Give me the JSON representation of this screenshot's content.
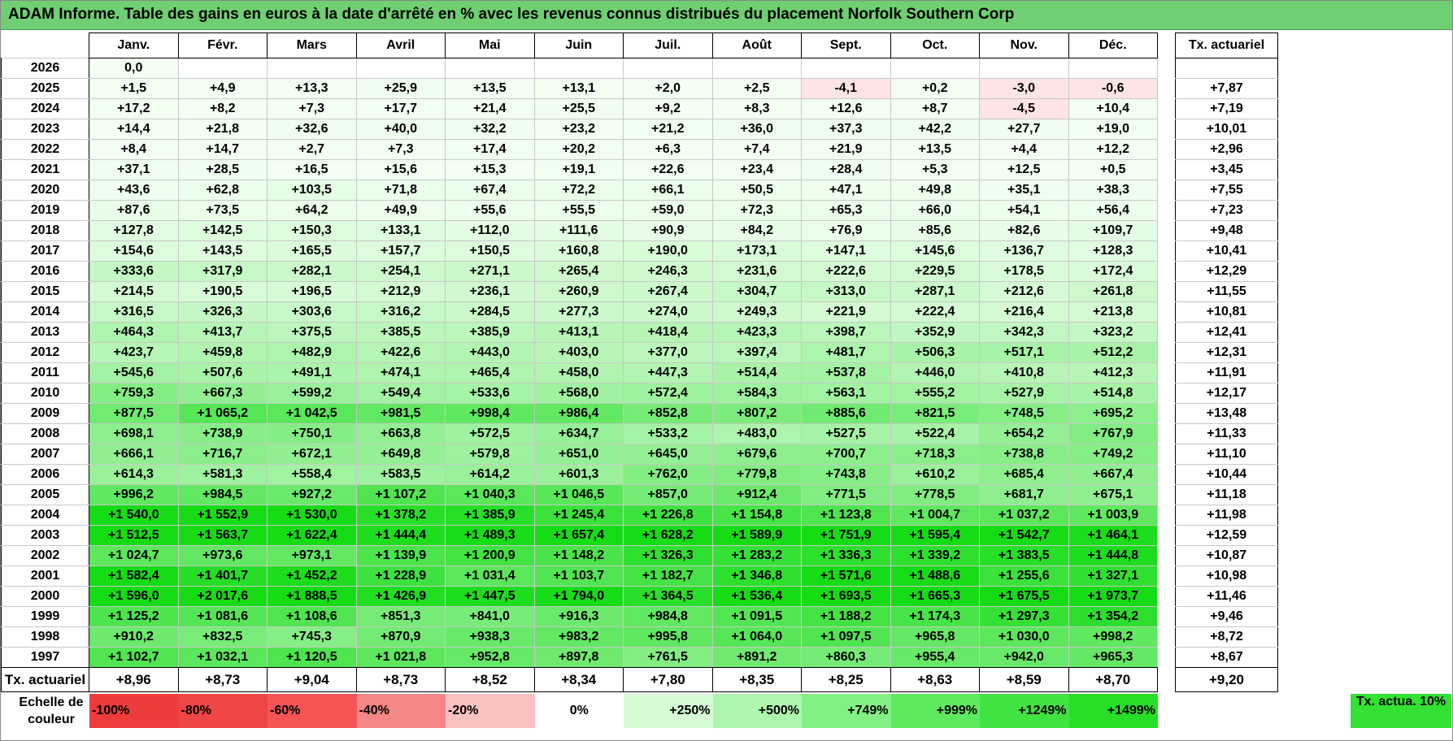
{
  "title": "ADAM Informe. Table des gains en euros à la date d'arrêté en % avec les revenus connus distribués du placement Norfolk Southern Corp",
  "months": [
    "Janv.",
    "Févr.",
    "Mars",
    "Avril",
    "Mai",
    "Juin",
    "Juil.",
    "Août",
    "Sept.",
    "Oct.",
    "Nov.",
    "Déc."
  ],
  "tx_header": "Tx. actuariel",
  "rows": [
    {
      "year": "2026",
      "values": [
        "0,0",
        "",
        "",
        "",
        "",
        "",
        "",
        "",
        "",
        "",
        "",
        ""
      ],
      "tx": ""
    },
    {
      "year": "2025",
      "values": [
        "+1,5",
        "+4,9",
        "+13,3",
        "+25,9",
        "+13,5",
        "+13,1",
        "+2,0",
        "+2,5",
        "-4,1",
        "+0,2",
        "-3,0",
        "-0,6"
      ],
      "tx": "+7,87"
    },
    {
      "year": "2024",
      "values": [
        "+17,2",
        "+8,2",
        "+7,3",
        "+17,7",
        "+21,4",
        "+25,5",
        "+9,2",
        "+8,3",
        "+12,6",
        "+8,7",
        "-4,5",
        "+10,4"
      ],
      "tx": "+7,19"
    },
    {
      "year": "2023",
      "values": [
        "+14,4",
        "+21,8",
        "+32,6",
        "+40,0",
        "+32,2",
        "+23,2",
        "+21,2",
        "+36,0",
        "+37,3",
        "+42,2",
        "+27,7",
        "+19,0"
      ],
      "tx": "+10,01"
    },
    {
      "year": "2022",
      "values": [
        "+8,4",
        "+14,7",
        "+2,7",
        "+7,3",
        "+17,4",
        "+20,2",
        "+6,3",
        "+7,4",
        "+21,9",
        "+13,5",
        "+4,4",
        "+12,2"
      ],
      "tx": "+2,96"
    },
    {
      "year": "2021",
      "values": [
        "+37,1",
        "+28,5",
        "+16,5",
        "+15,6",
        "+15,3",
        "+19,1",
        "+22,6",
        "+23,4",
        "+28,4",
        "+5,3",
        "+12,5",
        "+0,5"
      ],
      "tx": "+3,45"
    },
    {
      "year": "2020",
      "values": [
        "+43,6",
        "+62,8",
        "+103,5",
        "+71,8",
        "+67,4",
        "+72,2",
        "+66,1",
        "+50,5",
        "+47,1",
        "+49,8",
        "+35,1",
        "+38,3"
      ],
      "tx": "+7,55"
    },
    {
      "year": "2019",
      "values": [
        "+87,6",
        "+73,5",
        "+64,2",
        "+49,9",
        "+55,6",
        "+55,5",
        "+59,0",
        "+72,3",
        "+65,3",
        "+66,0",
        "+54,1",
        "+56,4"
      ],
      "tx": "+7,23"
    },
    {
      "year": "2018",
      "values": [
        "+127,8",
        "+142,5",
        "+150,3",
        "+133,1",
        "+112,0",
        "+111,6",
        "+90,9",
        "+84,2",
        "+76,9",
        "+85,6",
        "+82,6",
        "+109,7"
      ],
      "tx": "+9,48"
    },
    {
      "year": "2017",
      "values": [
        "+154,6",
        "+143,5",
        "+165,5",
        "+157,7",
        "+150,5",
        "+160,8",
        "+190,0",
        "+173,1",
        "+147,1",
        "+145,6",
        "+136,7",
        "+128,3"
      ],
      "tx": "+10,41"
    },
    {
      "year": "2016",
      "values": [
        "+333,6",
        "+317,9",
        "+282,1",
        "+254,1",
        "+271,1",
        "+265,4",
        "+246,3",
        "+231,6",
        "+222,6",
        "+229,5",
        "+178,5",
        "+172,4"
      ],
      "tx": "+12,29"
    },
    {
      "year": "2015",
      "values": [
        "+214,5",
        "+190,5",
        "+196,5",
        "+212,9",
        "+236,1",
        "+260,9",
        "+267,4",
        "+304,7",
        "+313,0",
        "+287,1",
        "+212,6",
        "+261,8"
      ],
      "tx": "+11,55"
    },
    {
      "year": "2014",
      "values": [
        "+316,5",
        "+326,3",
        "+303,6",
        "+316,2",
        "+284,5",
        "+277,3",
        "+274,0",
        "+249,3",
        "+221,9",
        "+222,4",
        "+216,4",
        "+213,8"
      ],
      "tx": "+10,81"
    },
    {
      "year": "2013",
      "values": [
        "+464,3",
        "+413,7",
        "+375,5",
        "+385,5",
        "+385,9",
        "+413,1",
        "+418,4",
        "+423,3",
        "+398,7",
        "+352,9",
        "+342,3",
        "+323,2"
      ],
      "tx": "+12,41"
    },
    {
      "year": "2012",
      "values": [
        "+423,7",
        "+459,8",
        "+482,9",
        "+422,6",
        "+443,0",
        "+403,0",
        "+377,0",
        "+397,4",
        "+481,7",
        "+506,3",
        "+517,1",
        "+512,2"
      ],
      "tx": "+12,31"
    },
    {
      "year": "2011",
      "values": [
        "+545,6",
        "+507,6",
        "+491,1",
        "+474,1",
        "+465,4",
        "+458,0",
        "+447,3",
        "+514,4",
        "+537,8",
        "+446,0",
        "+410,8",
        "+412,3"
      ],
      "tx": "+11,91"
    },
    {
      "year": "2010",
      "values": [
        "+759,3",
        "+667,3",
        "+599,2",
        "+549,4",
        "+533,6",
        "+568,0",
        "+572,4",
        "+584,3",
        "+563,1",
        "+555,2",
        "+527,9",
        "+514,8"
      ],
      "tx": "+12,17"
    },
    {
      "year": "2009",
      "values": [
        "+877,5",
        "+1 065,2",
        "+1 042,5",
        "+981,5",
        "+998,4",
        "+986,4",
        "+852,8",
        "+807,2",
        "+885,6",
        "+821,5",
        "+748,5",
        "+695,2"
      ],
      "tx": "+13,48"
    },
    {
      "year": "2008",
      "values": [
        "+698,1",
        "+738,9",
        "+750,1",
        "+663,8",
        "+572,5",
        "+634,7",
        "+533,2",
        "+483,0",
        "+527,5",
        "+522,4",
        "+654,2",
        "+767,9"
      ],
      "tx": "+11,33"
    },
    {
      "year": "2007",
      "values": [
        "+666,1",
        "+716,7",
        "+672,1",
        "+649,8",
        "+579,8",
        "+651,0",
        "+645,0",
        "+679,6",
        "+700,7",
        "+718,3",
        "+738,8",
        "+749,2"
      ],
      "tx": "+11,10"
    },
    {
      "year": "2006",
      "values": [
        "+614,3",
        "+581,3",
        "+558,4",
        "+583,5",
        "+614,2",
        "+601,3",
        "+762,0",
        "+779,8",
        "+743,8",
        "+610,2",
        "+685,4",
        "+667,4"
      ],
      "tx": "+10,44"
    },
    {
      "year": "2005",
      "values": [
        "+996,2",
        "+984,5",
        "+927,2",
        "+1 107,2",
        "+1 040,3",
        "+1 046,5",
        "+857,0",
        "+912,4",
        "+771,5",
        "+778,5",
        "+681,7",
        "+675,1"
      ],
      "tx": "+11,18"
    },
    {
      "year": "2004",
      "values": [
        "+1 540,0",
        "+1 552,9",
        "+1 530,0",
        "+1 378,2",
        "+1 385,9",
        "+1 245,4",
        "+1 226,8",
        "+1 154,8",
        "+1 123,8",
        "+1 004,7",
        "+1 037,2",
        "+1 003,9"
      ],
      "tx": "+11,98"
    },
    {
      "year": "2003",
      "values": [
        "+1 512,5",
        "+1 563,7",
        "+1 622,4",
        "+1 444,4",
        "+1 489,3",
        "+1 657,4",
        "+1 628,2",
        "+1 589,9",
        "+1 751,9",
        "+1 595,4",
        "+1 542,7",
        "+1 464,1"
      ],
      "tx": "+12,59"
    },
    {
      "year": "2002",
      "values": [
        "+1 024,7",
        "+973,6",
        "+973,1",
        "+1 139,9",
        "+1 200,9",
        "+1 148,2",
        "+1 326,3",
        "+1 283,2",
        "+1 336,3",
        "+1 339,2",
        "+1 383,5",
        "+1 444,8"
      ],
      "tx": "+10,87"
    },
    {
      "year": "2001",
      "values": [
        "+1 582,4",
        "+1 401,7",
        "+1 452,2",
        "+1 228,9",
        "+1 031,4",
        "+1 103,7",
        "+1 182,7",
        "+1 346,8",
        "+1 571,6",
        "+1 488,6",
        "+1 255,6",
        "+1 327,1"
      ],
      "tx": "+10,98"
    },
    {
      "year": "2000",
      "values": [
        "+1 596,0",
        "+2 017,6",
        "+1 888,5",
        "+1 426,9",
        "+1 447,5",
        "+1 794,0",
        "+1 364,5",
        "+1 536,4",
        "+1 693,5",
        "+1 665,3",
        "+1 675,5",
        "+1 973,7"
      ],
      "tx": "+11,46"
    },
    {
      "year": "1999",
      "values": [
        "+1 125,2",
        "+1 081,6",
        "+1 108,6",
        "+851,3",
        "+841,0",
        "+916,3",
        "+984,8",
        "+1 091,5",
        "+1 188,2",
        "+1 174,3",
        "+1 297,3",
        "+1 354,2"
      ],
      "tx": "+9,46"
    },
    {
      "year": "1998",
      "values": [
        "+910,2",
        "+832,5",
        "+745,3",
        "+870,9",
        "+938,3",
        "+983,2",
        "+995,8",
        "+1 064,0",
        "+1 097,5",
        "+965,8",
        "+1 030,0",
        "+998,2"
      ],
      "tx": "+8,72"
    },
    {
      "year": "1997",
      "values": [
        "+1 102,7",
        "+1 032,1",
        "+1 120,5",
        "+1 021,8",
        "+952,8",
        "+897,8",
        "+761,5",
        "+891,2",
        "+860,3",
        "+955,4",
        "+942,0",
        "+965,3"
      ],
      "tx": "+8,67"
    }
  ],
  "avg_row": {
    "label": "Tx. actuariel",
    "values": [
      "+8,96",
      "+8,73",
      "+9,04",
      "+8,73",
      "+8,52",
      "+8,34",
      "+7,80",
      "+8,35",
      "+8,25",
      "+8,63",
      "+8,59",
      "+8,70"
    ],
    "tx": "+9,20"
  },
  "legend": {
    "label": "Echelle de couleur",
    "items": [
      {
        "text": "-100%",
        "color": "#ee3b3b",
        "align": "l"
      },
      {
        "text": "-80%",
        "color": "#f04545",
        "align": "l"
      },
      {
        "text": "-60%",
        "color": "#f45454",
        "align": "l"
      },
      {
        "text": "-40%",
        "color": "#f68585",
        "align": "l"
      },
      {
        "text": "-20%",
        "color": "#fac1c1",
        "align": "l"
      },
      {
        "text": "0%",
        "color": "#ffffff",
        "align": "c"
      },
      {
        "text": "+250%",
        "color": "#d6fbd6",
        "align": "r"
      },
      {
        "text": "+500%",
        "color": "#aef5ae",
        "align": "r"
      },
      {
        "text": "+749%",
        "color": "#83f083",
        "align": "r"
      },
      {
        "text": "+999%",
        "color": "#5eea5e",
        "align": "r"
      },
      {
        "text": "+1249%",
        "color": "#40e340",
        "align": "r"
      },
      {
        "text": "+1499%",
        "color": "#27df27",
        "align": "r"
      }
    ],
    "tx_label": "Tx. actua. 10%",
    "tx_color": "#33e233"
  }
}
